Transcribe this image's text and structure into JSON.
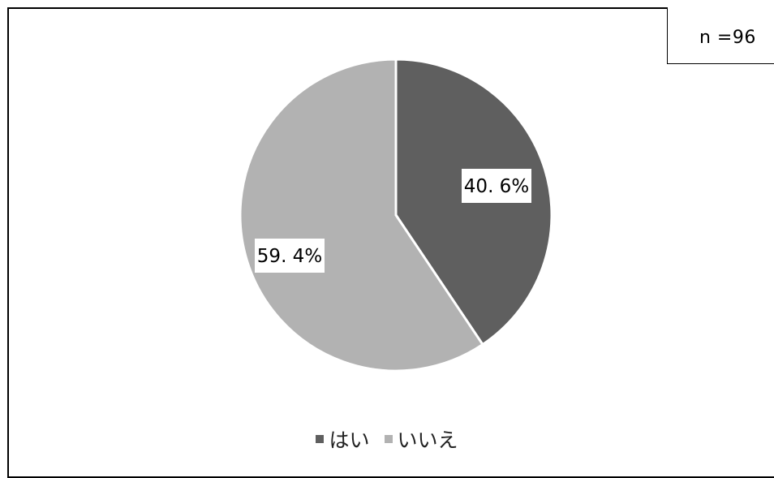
{
  "chart_data": {
    "type": "pie",
    "n_label": "n =96",
    "slices": [
      {
        "name": "はい",
        "value": 40.6,
        "label": "40. 6%",
        "color": "#5f5f5f"
      },
      {
        "name": "いいえ",
        "value": 59.4,
        "label": "59. 4%",
        "color": "#b2b2b2"
      }
    ],
    "legend_position": "bottom"
  }
}
